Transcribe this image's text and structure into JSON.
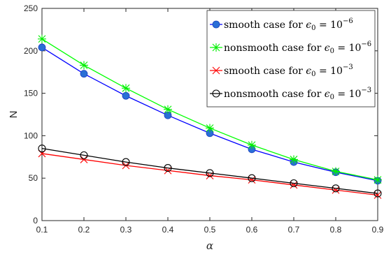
{
  "chart_data": {
    "type": "line",
    "xlabel": "α",
    "ylabel": "N",
    "x": [
      0.1,
      0.2,
      0.3,
      0.4,
      0.5,
      0.6,
      0.7,
      0.8,
      0.9
    ],
    "xlim": [
      0.1,
      0.9
    ],
    "ylim": [
      0,
      250
    ],
    "x_ticks": [
      "0.1",
      "0.2",
      "0.3",
      "0.4",
      "0.5",
      "0.6",
      "0.7",
      "0.8",
      "0.9"
    ],
    "y_ticks": [
      "0",
      "50",
      "100",
      "150",
      "200",
      "250"
    ],
    "grid": false,
    "legend_position": "top-right",
    "series": [
      {
        "name": "smooth case for ϵ₀ = 10⁻⁶",
        "legend": {
          "prefix": "smooth case for ",
          "sym": "ϵ",
          "sub": "0",
          "eq": " = 10",
          "sup": "−6"
        },
        "marker": "filled-circle",
        "color": "#0000ff",
        "marker_color": "#2a6fd6",
        "values": [
          204,
          173,
          147,
          124,
          103,
          84,
          69,
          57,
          47
        ]
      },
      {
        "name": "nonsmooth case for ϵ₀ = 10⁻⁶",
        "legend": {
          "prefix": "nonsmooth case for ",
          "sym": "ϵ",
          "sub": "0",
          "eq": " = 10",
          "sup": "−6"
        },
        "marker": "asterisk",
        "color": "#00ff00",
        "marker_color": "#00ee00",
        "values": [
          214,
          183,
          156,
          131,
          109,
          89,
          72,
          58,
          48
        ]
      },
      {
        "name": "smooth case for ϵ₀ = 10⁻³",
        "legend": {
          "prefix": "smooth case for ",
          "sym": "ϵ",
          "sub": "0",
          "eq": " = 10",
          "sup": "−3"
        },
        "marker": "x",
        "color": "#ff0000",
        "marker_color": "#ff0000",
        "values": [
          79,
          72,
          65,
          59,
          53,
          48,
          42,
          36,
          30
        ]
      },
      {
        "name": "nonsmooth case for ϵ₀ = 10⁻³",
        "legend": {
          "prefix": "nonsmooth case for ",
          "sym": "ϵ",
          "sub": "0",
          "eq": " = 10",
          "sup": "−3"
        },
        "marker": "open-circle",
        "color": "#000000",
        "marker_color": "#000000",
        "values": [
          85,
          77,
          69,
          62,
          56,
          50,
          44,
          38,
          32
        ]
      }
    ]
  }
}
